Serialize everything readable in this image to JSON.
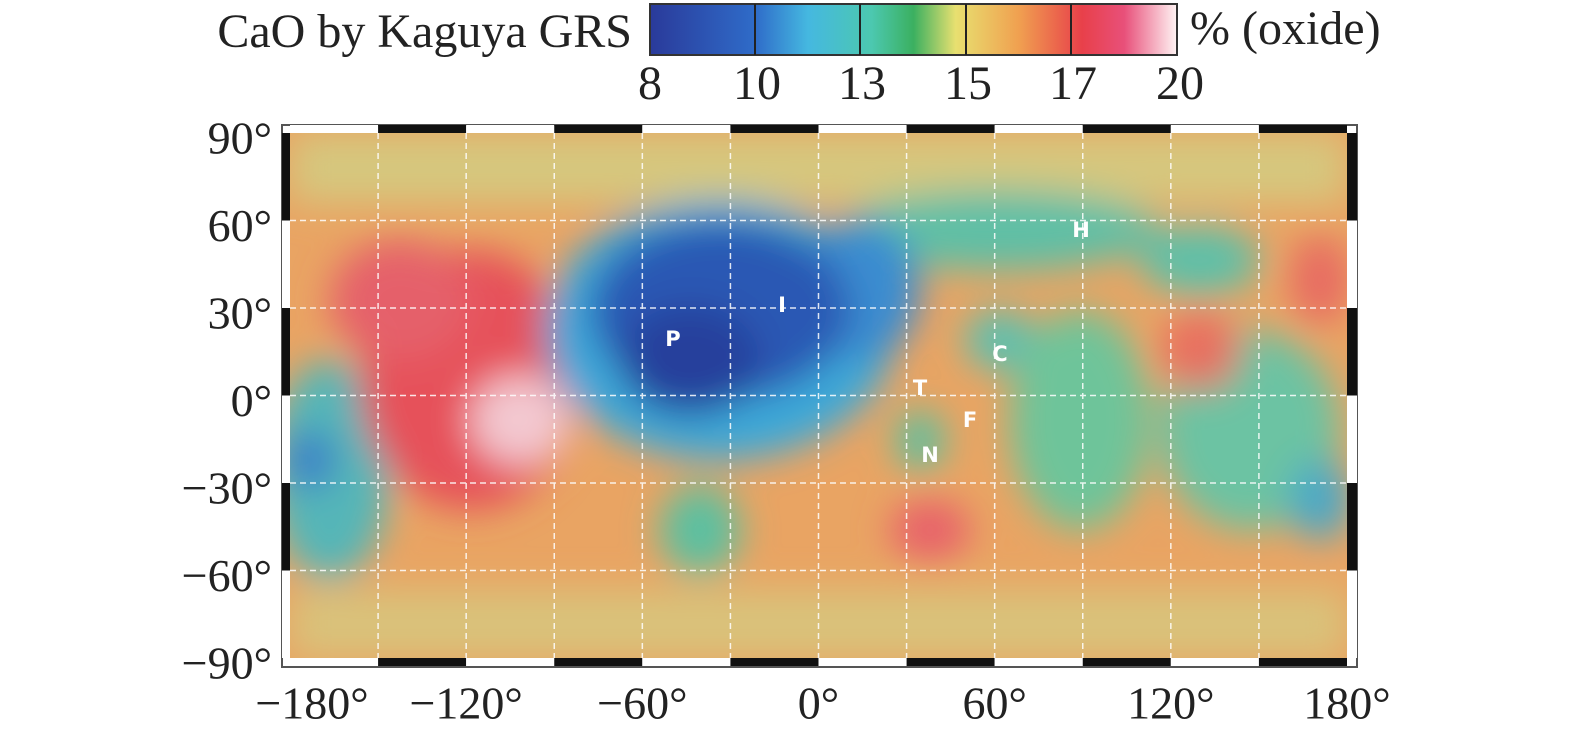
{
  "header": {
    "title": "CaO by Kaguya GRS",
    "unit": "% (oxide)"
  },
  "colorbar": {
    "ticks": [
      "8",
      "10",
      "13",
      "15",
      "17",
      "20"
    ]
  },
  "map": {
    "lat_labels": [
      "90°",
      "60°",
      "30°",
      "0°",
      "−30°",
      "−60°",
      "−90°"
    ],
    "lon_labels": [
      "−180°",
      "−120°",
      "−60°",
      "0°",
      "60°",
      "120°",
      "180°"
    ],
    "markers": [
      "H",
      "I",
      "P",
      "C",
      "T",
      "F",
      "N"
    ]
  }
}
